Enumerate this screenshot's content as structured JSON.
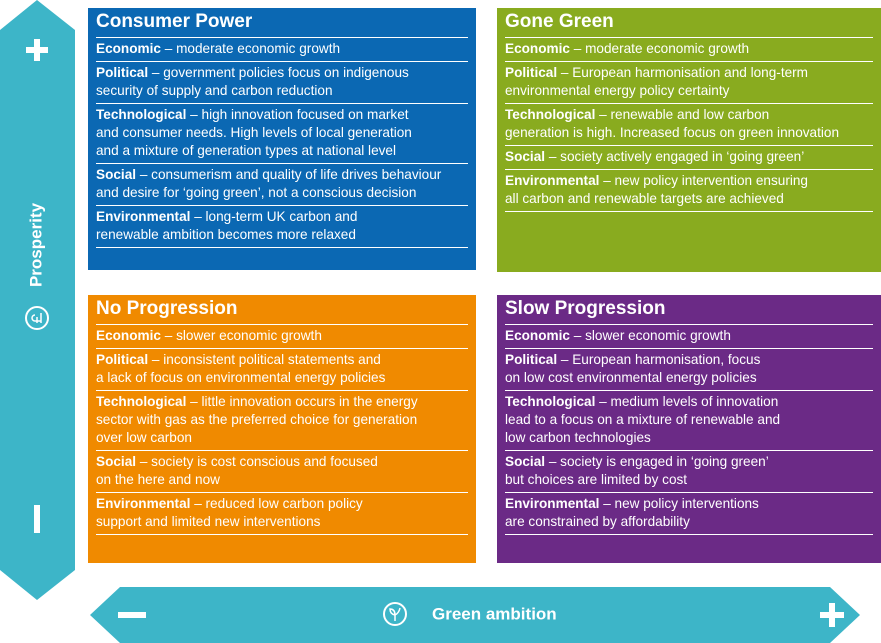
{
  "axes": {
    "vertical_label": "Prosperity",
    "horizontal_label": "Green ambition"
  },
  "quadrants": [
    {
      "title": "Consumer Power",
      "items": [
        {
          "label": "Economic",
          "lines": [
            " – moderate economic growth"
          ]
        },
        {
          "label": "Political",
          "lines": [
            " – government policies focus on indigenous",
            "security of supply and carbon reduction"
          ]
        },
        {
          "label": "Technological",
          "lines": [
            " – high innovation focused on market",
            "and consumer needs. High levels of local generation",
            "and a mixture of generation types at national level"
          ]
        },
        {
          "label": "Social",
          "lines": [
            " – consumerism and quality of life drives behaviour",
            "and desire for ‘going green’, not a conscious decision"
          ]
        },
        {
          "label": "Environmental",
          "lines": [
            " – long-term UK carbon and",
            "renewable ambition becomes more relaxed"
          ]
        }
      ]
    },
    {
      "title": "Gone Green",
      "items": [
        {
          "label": "Economic",
          "lines": [
            " – moderate economic growth"
          ]
        },
        {
          "label": "Political",
          "lines": [
            " – European harmonisation and long-term",
            "environmental energy policy certainty"
          ]
        },
        {
          "label": "Technological",
          "lines": [
            " – renewable and low carbon",
            "generation is high. Increased focus on green innovation"
          ]
        },
        {
          "label": "Social",
          "lines": [
            " – society actively engaged in ‘going green’"
          ]
        },
        {
          "label": "Environmental",
          "lines": [
            " – new policy intervention ensuring",
            "all carbon and renewable targets are achieved"
          ]
        }
      ]
    },
    {
      "title": "No Progression",
      "items": [
        {
          "label": "Economic",
          "lines": [
            " – slower economic growth"
          ]
        },
        {
          "label": "Political",
          "lines": [
            " – inconsistent political statements and",
            "a lack of focus on environmental energy policies"
          ]
        },
        {
          "label": "Technological",
          "lines": [
            " – little innovation occurs in the energy",
            "sector with gas as the preferred choice for generation",
            "over low carbon"
          ]
        },
        {
          "label": "Social",
          "lines": [
            " – society is cost conscious and focused",
            "on the here and now"
          ]
        },
        {
          "label": "Environmental",
          "lines": [
            " – reduced low carbon policy",
            "support and limited new interventions"
          ]
        }
      ]
    },
    {
      "title": "Slow Progression",
      "items": [
        {
          "label": "Economic",
          "lines": [
            " – slower economic growth"
          ]
        },
        {
          "label": "Political",
          "lines": [
            " – European harmonisation, focus",
            "on low cost environmental energy policies"
          ]
        },
        {
          "label": "Technological",
          "lines": [
            " – medium levels of innovation",
            "lead to a focus on a mixture of renewable and",
            "low carbon technologies"
          ]
        },
        {
          "label": "Social",
          "lines": [
            " – society is engaged in ‘going green’",
            "but choices are limited by cost"
          ]
        },
        {
          "label": "Environmental",
          "lines": [
            " – new policy interventions",
            "are constrained by affordability"
          ]
        }
      ]
    }
  ]
}
